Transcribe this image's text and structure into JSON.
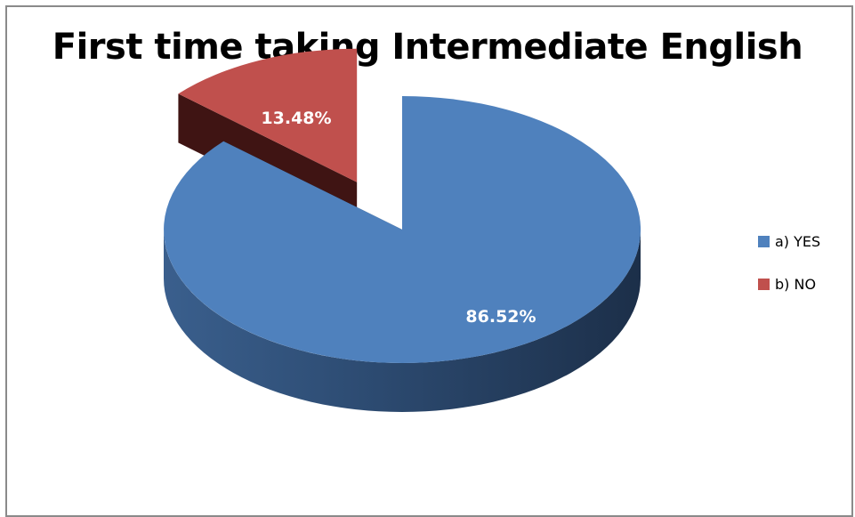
{
  "chart_data": {
    "type": "pie",
    "title": "First time taking Intermediate English",
    "categories": [
      "a) YES",
      "b) NO"
    ],
    "values": [
      86.52,
      13.48
    ],
    "data_labels": [
      "86.52%",
      "13.48%"
    ],
    "colors": [
      "#4f81bd",
      "#c0504d"
    ],
    "exploded": [
      false,
      true
    ],
    "style": "3d",
    "legend_position": "right"
  }
}
